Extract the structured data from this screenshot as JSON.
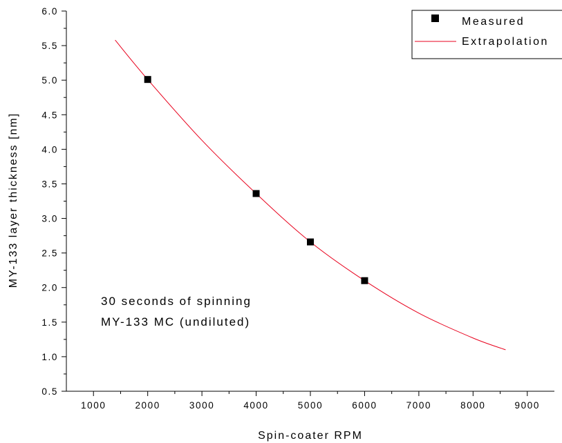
{
  "chart_data": {
    "type": "scatter",
    "xlabel": "Spin-coater RPM",
    "ylabel": "MY-133 layer thickness [nm]",
    "xlim": [
      500,
      9500
    ],
    "ylim": [
      0.5,
      6.0
    ],
    "x_ticks": [
      1000,
      2000,
      3000,
      4000,
      5000,
      6000,
      7000,
      8000,
      9000
    ],
    "y_ticks": [
      "0.5",
      "1.0",
      "1.5",
      "2.0",
      "2.5",
      "3.0",
      "3.5",
      "4.0",
      "4.5",
      "5.0",
      "5.5",
      "6.0"
    ],
    "grid": false,
    "legend_position": "top-right",
    "series": [
      {
        "name": "Measured",
        "kind": "scatter",
        "marker": "square",
        "color": "#000000",
        "x": [
          2000,
          4000,
          5000,
          6000
        ],
        "y": [
          5.01,
          3.36,
          2.66,
          2.1
        ]
      },
      {
        "name": "Extrapolation",
        "kind": "line",
        "color": "#e8001c",
        "x": [
          1400,
          2000,
          3000,
          4000,
          5000,
          6000,
          7000,
          8000,
          8600
        ],
        "y": [
          5.58,
          5.01,
          4.13,
          3.36,
          2.66,
          2.1,
          1.63,
          1.27,
          1.1
        ]
      }
    ],
    "annotations": [
      "30 seconds of spinning",
      "MY-133 MC (undiluted)"
    ]
  }
}
